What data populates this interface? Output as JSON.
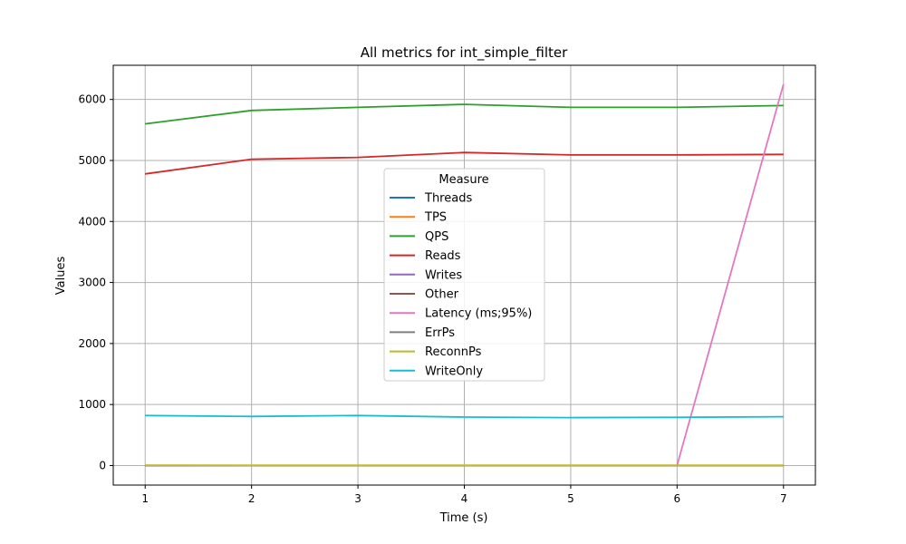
{
  "chart_data": {
    "type": "line",
    "title": "All metrics for int_simple_filter",
    "xlabel": "Time (s)",
    "ylabel": "Values",
    "xlim": [
      0.7,
      7.3
    ],
    "ylim": [
      -320,
      6560
    ],
    "xticks": [
      1,
      2,
      3,
      4,
      5,
      6,
      7
    ],
    "yticks": [
      0,
      1000,
      2000,
      3000,
      4000,
      5000,
      6000
    ],
    "grid": true,
    "legend": {
      "title": "Measure",
      "placement": "center"
    },
    "x": [
      1,
      2,
      3,
      4,
      5,
      6,
      7
    ],
    "series": [
      {
        "name": "Threads",
        "color": "#1f77b4",
        "values": [
          1,
          1,
          1,
          1,
          1,
          1,
          1
        ]
      },
      {
        "name": "TPS",
        "color": "#ff7f0e",
        "values": [
          2,
          2,
          2,
          2,
          2,
          2,
          2
        ]
      },
      {
        "name": "QPS",
        "color": "#2ca02c",
        "values": [
          5600,
          5820,
          5870,
          5920,
          5870,
          5870,
          5900
        ]
      },
      {
        "name": "Reads",
        "color": "#d62728",
        "values": [
          4780,
          5020,
          5050,
          5130,
          5090,
          5090,
          5100
        ]
      },
      {
        "name": "Writes",
        "color": "#9467bd",
        "values": [
          0,
          0,
          0,
          0,
          0,
          0,
          0
        ]
      },
      {
        "name": "Other",
        "color": "#8c564b",
        "values": [
          0,
          0,
          0,
          0,
          0,
          0,
          0
        ]
      },
      {
        "name": "Latency (ms;95%)",
        "color": "#e377c2",
        "values": [
          1,
          1,
          1,
          1,
          1,
          1,
          6250
        ]
      },
      {
        "name": "ErrPs",
        "color": "#7f7f7f",
        "values": [
          0,
          0,
          0,
          0,
          0,
          0,
          0
        ]
      },
      {
        "name": "ReconnPs",
        "color": "#bcbd22",
        "values": [
          5,
          3,
          2,
          2,
          2,
          2,
          3
        ]
      },
      {
        "name": "WriteOnly",
        "color": "#17becf",
        "values": [
          820,
          805,
          820,
          795,
          785,
          790,
          800
        ]
      }
    ]
  }
}
